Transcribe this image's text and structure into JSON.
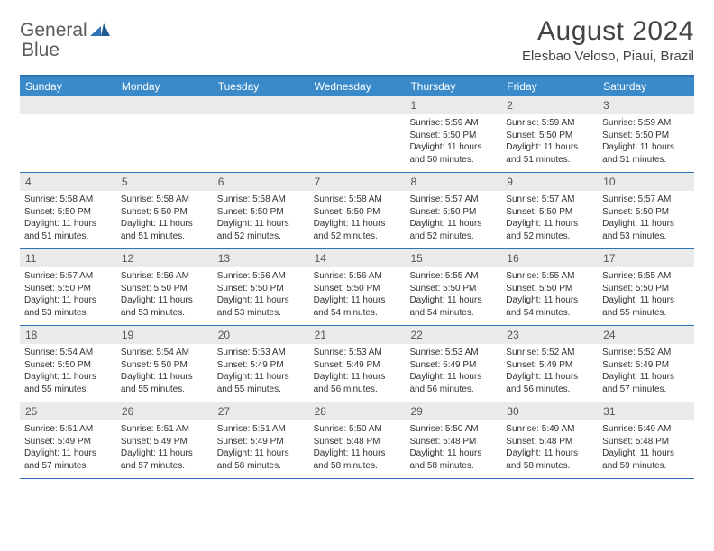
{
  "logo": {
    "text1": "General",
    "text2": "Blue"
  },
  "title": "August 2024",
  "location": "Elesbao Veloso, Piaui, Brazil",
  "colors": {
    "header_bg": "#3a8ac9",
    "border": "#2f72b8",
    "daynum_bg": "#e9eaea",
    "text": "#333333"
  },
  "dow": [
    "Sunday",
    "Monday",
    "Tuesday",
    "Wednesday",
    "Thursday",
    "Friday",
    "Saturday"
  ],
  "weeks": [
    [
      {
        "n": "",
        "sr": "",
        "ss": "",
        "dl": ""
      },
      {
        "n": "",
        "sr": "",
        "ss": "",
        "dl": ""
      },
      {
        "n": "",
        "sr": "",
        "ss": "",
        "dl": ""
      },
      {
        "n": "",
        "sr": "",
        "ss": "",
        "dl": ""
      },
      {
        "n": "1",
        "sr": "Sunrise: 5:59 AM",
        "ss": "Sunset: 5:50 PM",
        "dl": "Daylight: 11 hours and 50 minutes."
      },
      {
        "n": "2",
        "sr": "Sunrise: 5:59 AM",
        "ss": "Sunset: 5:50 PM",
        "dl": "Daylight: 11 hours and 51 minutes."
      },
      {
        "n": "3",
        "sr": "Sunrise: 5:59 AM",
        "ss": "Sunset: 5:50 PM",
        "dl": "Daylight: 11 hours and 51 minutes."
      }
    ],
    [
      {
        "n": "4",
        "sr": "Sunrise: 5:58 AM",
        "ss": "Sunset: 5:50 PM",
        "dl": "Daylight: 11 hours and 51 minutes."
      },
      {
        "n": "5",
        "sr": "Sunrise: 5:58 AM",
        "ss": "Sunset: 5:50 PM",
        "dl": "Daylight: 11 hours and 51 minutes."
      },
      {
        "n": "6",
        "sr": "Sunrise: 5:58 AM",
        "ss": "Sunset: 5:50 PM",
        "dl": "Daylight: 11 hours and 52 minutes."
      },
      {
        "n": "7",
        "sr": "Sunrise: 5:58 AM",
        "ss": "Sunset: 5:50 PM",
        "dl": "Daylight: 11 hours and 52 minutes."
      },
      {
        "n": "8",
        "sr": "Sunrise: 5:57 AM",
        "ss": "Sunset: 5:50 PM",
        "dl": "Daylight: 11 hours and 52 minutes."
      },
      {
        "n": "9",
        "sr": "Sunrise: 5:57 AM",
        "ss": "Sunset: 5:50 PM",
        "dl": "Daylight: 11 hours and 52 minutes."
      },
      {
        "n": "10",
        "sr": "Sunrise: 5:57 AM",
        "ss": "Sunset: 5:50 PM",
        "dl": "Daylight: 11 hours and 53 minutes."
      }
    ],
    [
      {
        "n": "11",
        "sr": "Sunrise: 5:57 AM",
        "ss": "Sunset: 5:50 PM",
        "dl": "Daylight: 11 hours and 53 minutes."
      },
      {
        "n": "12",
        "sr": "Sunrise: 5:56 AM",
        "ss": "Sunset: 5:50 PM",
        "dl": "Daylight: 11 hours and 53 minutes."
      },
      {
        "n": "13",
        "sr": "Sunrise: 5:56 AM",
        "ss": "Sunset: 5:50 PM",
        "dl": "Daylight: 11 hours and 53 minutes."
      },
      {
        "n": "14",
        "sr": "Sunrise: 5:56 AM",
        "ss": "Sunset: 5:50 PM",
        "dl": "Daylight: 11 hours and 54 minutes."
      },
      {
        "n": "15",
        "sr": "Sunrise: 5:55 AM",
        "ss": "Sunset: 5:50 PM",
        "dl": "Daylight: 11 hours and 54 minutes."
      },
      {
        "n": "16",
        "sr": "Sunrise: 5:55 AM",
        "ss": "Sunset: 5:50 PM",
        "dl": "Daylight: 11 hours and 54 minutes."
      },
      {
        "n": "17",
        "sr": "Sunrise: 5:55 AM",
        "ss": "Sunset: 5:50 PM",
        "dl": "Daylight: 11 hours and 55 minutes."
      }
    ],
    [
      {
        "n": "18",
        "sr": "Sunrise: 5:54 AM",
        "ss": "Sunset: 5:50 PM",
        "dl": "Daylight: 11 hours and 55 minutes."
      },
      {
        "n": "19",
        "sr": "Sunrise: 5:54 AM",
        "ss": "Sunset: 5:50 PM",
        "dl": "Daylight: 11 hours and 55 minutes."
      },
      {
        "n": "20",
        "sr": "Sunrise: 5:53 AM",
        "ss": "Sunset: 5:49 PM",
        "dl": "Daylight: 11 hours and 55 minutes."
      },
      {
        "n": "21",
        "sr": "Sunrise: 5:53 AM",
        "ss": "Sunset: 5:49 PM",
        "dl": "Daylight: 11 hours and 56 minutes."
      },
      {
        "n": "22",
        "sr": "Sunrise: 5:53 AM",
        "ss": "Sunset: 5:49 PM",
        "dl": "Daylight: 11 hours and 56 minutes."
      },
      {
        "n": "23",
        "sr": "Sunrise: 5:52 AM",
        "ss": "Sunset: 5:49 PM",
        "dl": "Daylight: 11 hours and 56 minutes."
      },
      {
        "n": "24",
        "sr": "Sunrise: 5:52 AM",
        "ss": "Sunset: 5:49 PM",
        "dl": "Daylight: 11 hours and 57 minutes."
      }
    ],
    [
      {
        "n": "25",
        "sr": "Sunrise: 5:51 AM",
        "ss": "Sunset: 5:49 PM",
        "dl": "Daylight: 11 hours and 57 minutes."
      },
      {
        "n": "26",
        "sr": "Sunrise: 5:51 AM",
        "ss": "Sunset: 5:49 PM",
        "dl": "Daylight: 11 hours and 57 minutes."
      },
      {
        "n": "27",
        "sr": "Sunrise: 5:51 AM",
        "ss": "Sunset: 5:49 PM",
        "dl": "Daylight: 11 hours and 58 minutes."
      },
      {
        "n": "28",
        "sr": "Sunrise: 5:50 AM",
        "ss": "Sunset: 5:48 PM",
        "dl": "Daylight: 11 hours and 58 minutes."
      },
      {
        "n": "29",
        "sr": "Sunrise: 5:50 AM",
        "ss": "Sunset: 5:48 PM",
        "dl": "Daylight: 11 hours and 58 minutes."
      },
      {
        "n": "30",
        "sr": "Sunrise: 5:49 AM",
        "ss": "Sunset: 5:48 PM",
        "dl": "Daylight: 11 hours and 58 minutes."
      },
      {
        "n": "31",
        "sr": "Sunrise: 5:49 AM",
        "ss": "Sunset: 5:48 PM",
        "dl": "Daylight: 11 hours and 59 minutes."
      }
    ]
  ]
}
